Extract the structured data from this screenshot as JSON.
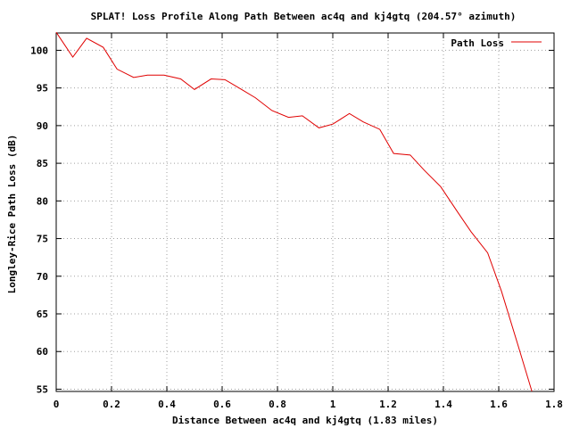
{
  "chart_data": {
    "type": "line",
    "title": "SPLAT! Loss Profile Along Path Between ac4q and kj4gtq (204.57° azimuth)",
    "xlabel": "Distance Between ac4q and kj4gtq (1.83 miles)",
    "ylabel": "Longley-Rice Path Loss (dB)",
    "xlim": [
      0,
      1.8
    ],
    "ylim": [
      54.7,
      102.3
    ],
    "xticks": [
      0,
      0.2,
      0.4,
      0.6,
      0.8,
      1,
      1.2,
      1.4,
      1.6,
      1.8
    ],
    "xtick_labels": [
      "0",
      "0.2",
      "0.4",
      "0.6",
      "0.8",
      "1",
      "1.2",
      "1.4",
      "1.6",
      "1.8"
    ],
    "yticks": [
      55,
      60,
      65,
      70,
      75,
      80,
      85,
      90,
      95,
      100
    ],
    "ytick_labels": [
      "55",
      "60",
      "65",
      "70",
      "75",
      "80",
      "85",
      "90",
      "95",
      "100"
    ],
    "grid": true,
    "legend_position": "top-right",
    "series": [
      {
        "name": "Path Loss",
        "color": "#e00000",
        "x": [
          0,
          0.06,
          0.11,
          0.17,
          0.22,
          0.28,
          0.33,
          0.39,
          0.45,
          0.5,
          0.56,
          0.61,
          0.67,
          0.72,
          0.78,
          0.84,
          0.89,
          0.95,
          1.0,
          1.06,
          1.11,
          1.17,
          1.22,
          1.28,
          1.33,
          1.39,
          1.45,
          1.5,
          1.56,
          1.61,
          1.67,
          1.72
        ],
        "values": [
          102.4,
          99.1,
          101.6,
          100.4,
          97.5,
          96.4,
          96.7,
          96.7,
          96.2,
          94.8,
          96.2,
          96.1,
          94.8,
          93.7,
          92.0,
          91.1,
          91.3,
          89.7,
          90.2,
          91.6,
          90.5,
          89.5,
          86.3,
          86.1,
          84.1,
          81.9,
          78.6,
          75.9,
          73.1,
          68.0,
          60.8,
          54.7
        ]
      }
    ]
  },
  "icons": {
    "legend_line": "red-line-sample"
  }
}
